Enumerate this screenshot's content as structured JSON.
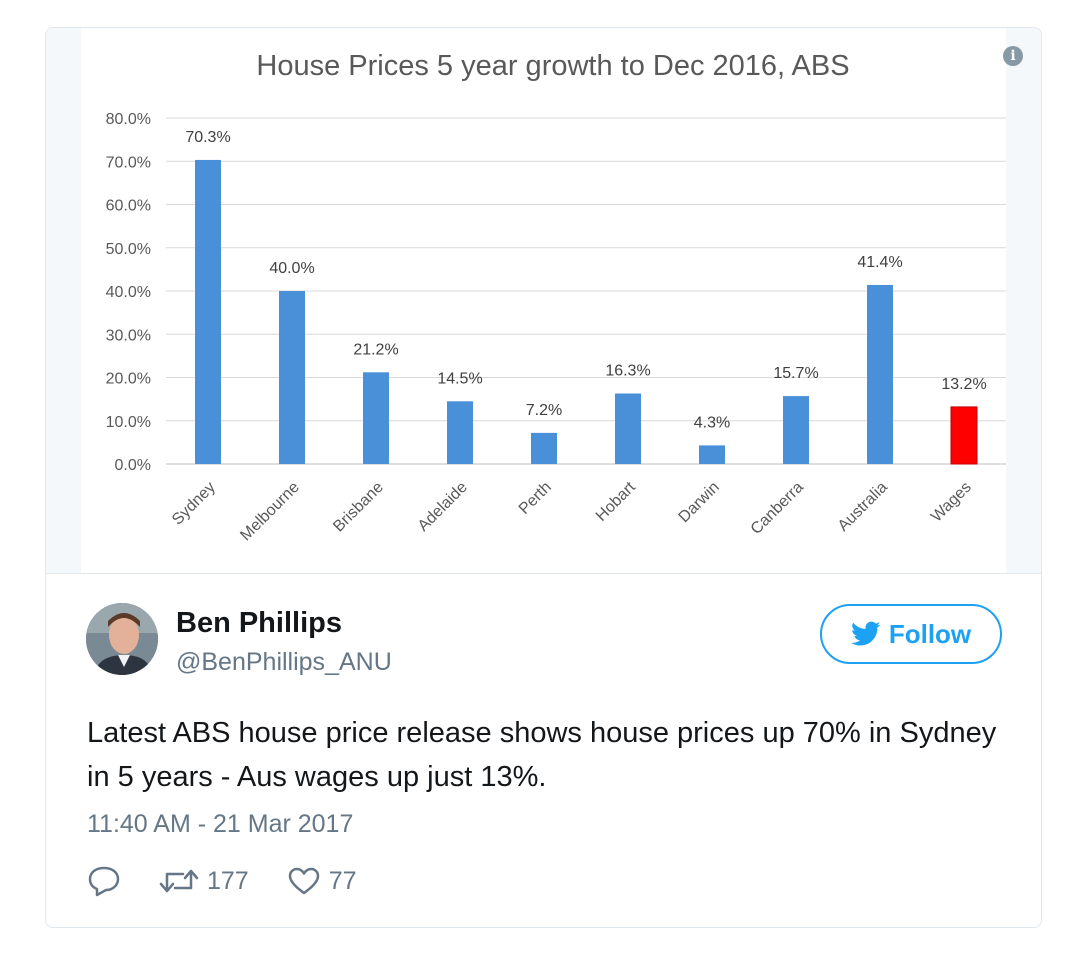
{
  "tweet": {
    "author_name": "Ben Phillips",
    "author_handle": "@BenPhillips_ANU",
    "follow_label": "Follow",
    "text": "Latest ABS house price release shows house prices up 70% in Sydney in 5 years - Aus wages up just 13%.",
    "timestamp": "11:40 AM - 21 Mar 2017",
    "retweet_count": "177",
    "like_count": "77"
  },
  "colors": {
    "brand_blue": "#1da1f2",
    "bar_blue": "#4a90d9",
    "bar_red": "#ff0000",
    "muted_text": "#657786"
  },
  "chart_data": {
    "type": "bar",
    "title": "House Prices 5 year growth to Dec 2016, ABS",
    "categories": [
      "Sydney",
      "Melbourne",
      "Brisbane",
      "Adelaide",
      "Perth",
      "Hobart",
      "Darwin",
      "Canberra",
      "Australia",
      "Wages"
    ],
    "values": [
      70.3,
      40.0,
      21.2,
      14.5,
      7.2,
      16.3,
      4.3,
      15.7,
      41.4,
      13.2
    ],
    "value_labels": [
      "70.3%",
      "40.0%",
      "21.2%",
      "14.5%",
      "7.2%",
      "16.3%",
      "4.3%",
      "15.7%",
      "41.4%",
      "13.2%"
    ],
    "bar_colors": [
      "#4a90d9",
      "#4a90d9",
      "#4a90d9",
      "#4a90d9",
      "#4a90d9",
      "#4a90d9",
      "#4a90d9",
      "#4a90d9",
      "#4a90d9",
      "#ff0000"
    ],
    "yticks": [
      "0.0%",
      "10.0%",
      "20.0%",
      "30.0%",
      "40.0%",
      "50.0%",
      "60.0%",
      "70.0%",
      "80.0%"
    ],
    "ylim": [
      0,
      80
    ],
    "grid": true,
    "legend": false
  }
}
